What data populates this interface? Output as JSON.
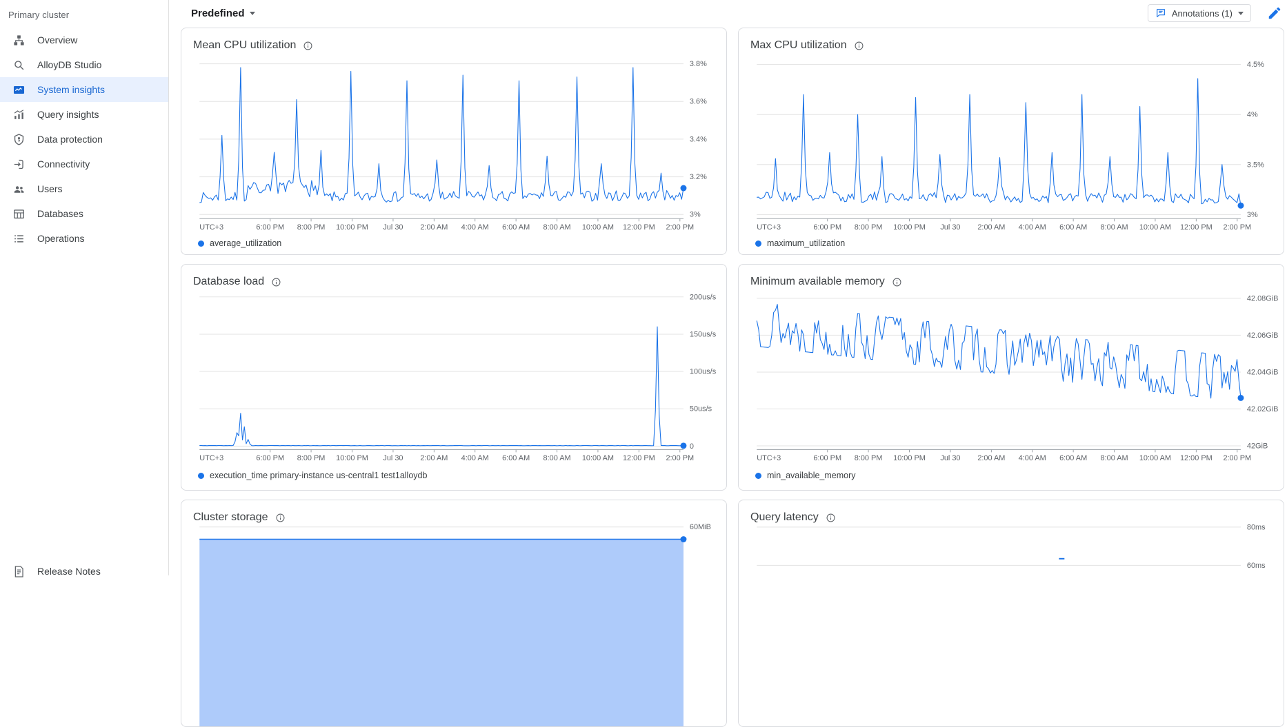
{
  "sidebar": {
    "section_label": "Primary cluster",
    "items": [
      {
        "label": "Overview",
        "icon": "overview",
        "active": false
      },
      {
        "label": "AlloyDB Studio",
        "icon": "search",
        "active": false
      },
      {
        "label": "System insights",
        "icon": "insights",
        "active": true
      },
      {
        "label": "Query insights",
        "icon": "query",
        "active": false
      },
      {
        "label": "Data protection",
        "icon": "shield",
        "active": false
      },
      {
        "label": "Connectivity",
        "icon": "login",
        "active": false
      },
      {
        "label": "Users",
        "icon": "users",
        "active": false
      },
      {
        "label": "Databases",
        "icon": "grid",
        "active": false
      },
      {
        "label": "Operations",
        "icon": "list",
        "active": false
      }
    ],
    "footer_item": {
      "label": "Release Notes",
      "icon": "doc"
    }
  },
  "toolbar": {
    "preset_dropdown": "Predefined",
    "annotations_button": "Annotations (1)"
  },
  "x_axis": {
    "timezone_label": "UTC+3",
    "tick_labels": [
      "6:00 PM",
      "8:00 PM",
      "10:00 PM",
      "Jul 30",
      "2:00 AM",
      "4:00 AM",
      "6:00 AM",
      "8:00 AM",
      "10:00 AM",
      "12:00 PM",
      "2:00 PM"
    ]
  },
  "colors": {
    "line": "#1a73e8",
    "area_fill": "#aecbfa",
    "active_text": "#1967d2",
    "active_bg": "#e8f0fe",
    "grid_line": "#e3e3e3",
    "axis_line": "#9aa0a6",
    "tick_text": "#5f6368"
  },
  "chart_data": [
    {
      "id": "mean-cpu-utilization",
      "type": "line",
      "row": 0,
      "title": "Mean CPU utilization",
      "legend": "average_utilization",
      "yticks": [
        [
          "3.8%",
          3.8
        ],
        [
          "3.6%",
          3.6
        ],
        [
          "3.4%",
          3.4
        ],
        [
          "3.2%",
          3.2
        ],
        [
          "3%",
          3.0
        ]
      ],
      "ylim": [
        2.978,
        3.825
      ],
      "x_axis": true,
      "series": {
        "seed": 7,
        "start": 3.09,
        "end_trend": 3.1,
        "noise": 0.028,
        "walk": 0,
        "bumps": [
          [
            0.1,
            0.24,
            0.07
          ]
        ],
        "spikes": [
          [
            0.045,
            3.42
          ],
          [
            0.086,
            3.78
          ],
          [
            0.155,
            3.33
          ],
          [
            0.2,
            3.61
          ],
          [
            0.25,
            3.34
          ],
          [
            0.313,
            3.76
          ],
          [
            0.37,
            3.27
          ],
          [
            0.428,
            3.71
          ],
          [
            0.49,
            3.29
          ],
          [
            0.544,
            3.74
          ],
          [
            0.6,
            3.26
          ],
          [
            0.662,
            3.71
          ],
          [
            0.72,
            3.31
          ],
          [
            0.778,
            3.73
          ],
          [
            0.83,
            3.27
          ],
          [
            0.894,
            3.78
          ],
          [
            0.955,
            3.22
          ]
        ],
        "end": 3.14
      }
    },
    {
      "id": "max-cpu-utilization",
      "type": "line",
      "row": 0,
      "title": "Max CPU utilization",
      "legend": "maximum_utilization",
      "yticks": [
        [
          "4.5%",
          4.5
        ],
        [
          "4%",
          4.0
        ],
        [
          "3.5%",
          3.5
        ],
        [
          "3%",
          3.0
        ]
      ],
      "ylim": [
        2.959,
        4.555
      ],
      "x_axis": true,
      "series": {
        "seed": 21,
        "start": 3.18,
        "end_trend": 3.16,
        "noise": 0.055,
        "walk": 0,
        "bumps": [],
        "spikes": [
          [
            0.04,
            3.56
          ],
          [
            0.096,
            4.2
          ],
          [
            0.15,
            3.62
          ],
          [
            0.21,
            4.0
          ],
          [
            0.26,
            3.58
          ],
          [
            0.327,
            4.17
          ],
          [
            0.38,
            3.6
          ],
          [
            0.441,
            4.2
          ],
          [
            0.5,
            3.57
          ],
          [
            0.556,
            4.12
          ],
          [
            0.61,
            3.62
          ],
          [
            0.673,
            4.2
          ],
          [
            0.73,
            3.58
          ],
          [
            0.792,
            4.08
          ],
          [
            0.85,
            3.62
          ],
          [
            0.912,
            4.36
          ],
          [
            0.96,
            3.5
          ]
        ],
        "end": 3.09
      }
    },
    {
      "id": "database-load",
      "type": "line",
      "row": 1,
      "title": "Database load",
      "legend": "execution_time primary-instance us-central1 test1alloydb",
      "yticks": [
        [
          "200us/s",
          200
        ],
        [
          "150us/s",
          150
        ],
        [
          "100us/s",
          100
        ],
        [
          "50us/s",
          50
        ],
        [
          "0",
          0
        ]
      ],
      "ylim": [
        -4.6,
        206.5
      ],
      "x_axis": true,
      "series": {
        "seed": 5,
        "start": 0.7,
        "end_trend": 0.7,
        "noise": 0.2,
        "walk": 0,
        "bumps": [],
        "spikes": [
          [
            0.078,
            18
          ],
          [
            0.085,
            44
          ],
          [
            0.092,
            26
          ],
          [
            0.1,
            9
          ],
          [
            0.945,
            160
          ]
        ],
        "end": 0.5
      }
    },
    {
      "id": "minimum-available-memory",
      "type": "line",
      "row": 1,
      "title": "Minimum available memory",
      "legend": "min_available_memory",
      "yticks": [
        [
          "42.08GiB",
          42.08
        ],
        [
          "42.06GiB",
          42.06
        ],
        [
          "42.04GiB",
          42.04
        ],
        [
          "42.02GiB",
          42.02
        ],
        [
          "42GiB",
          42.0
        ]
      ],
      "ylim": [
        41.998,
        42.0834
      ],
      "x_axis": true,
      "series": {
        "seed": 13,
        "start": 42.066,
        "end_trend": 42.036,
        "noise": 0.014,
        "walk": 0.012,
        "bumps": [],
        "spikes": [],
        "end": 42.026
      }
    },
    {
      "id": "cluster-storage",
      "type": "area",
      "row": 2,
      "title": "Cluster storage",
      "legend": null,
      "yticks": [
        [
          "60MiB",
          60
        ]
      ],
      "ylim": [
        -13,
        61.1
      ],
      "x_axis": false,
      "value": 53.5
    },
    {
      "id": "query-latency",
      "type": "marks",
      "row": 2,
      "title": "Query latency",
      "legend": null,
      "yticks": [
        [
          "80ms",
          80
        ],
        [
          "60ms",
          60
        ]
      ],
      "ylim": [
        8.2,
        81.1
      ],
      "x_axis": false,
      "marks": [
        [
          0.63,
          63.5
        ]
      ]
    }
  ]
}
